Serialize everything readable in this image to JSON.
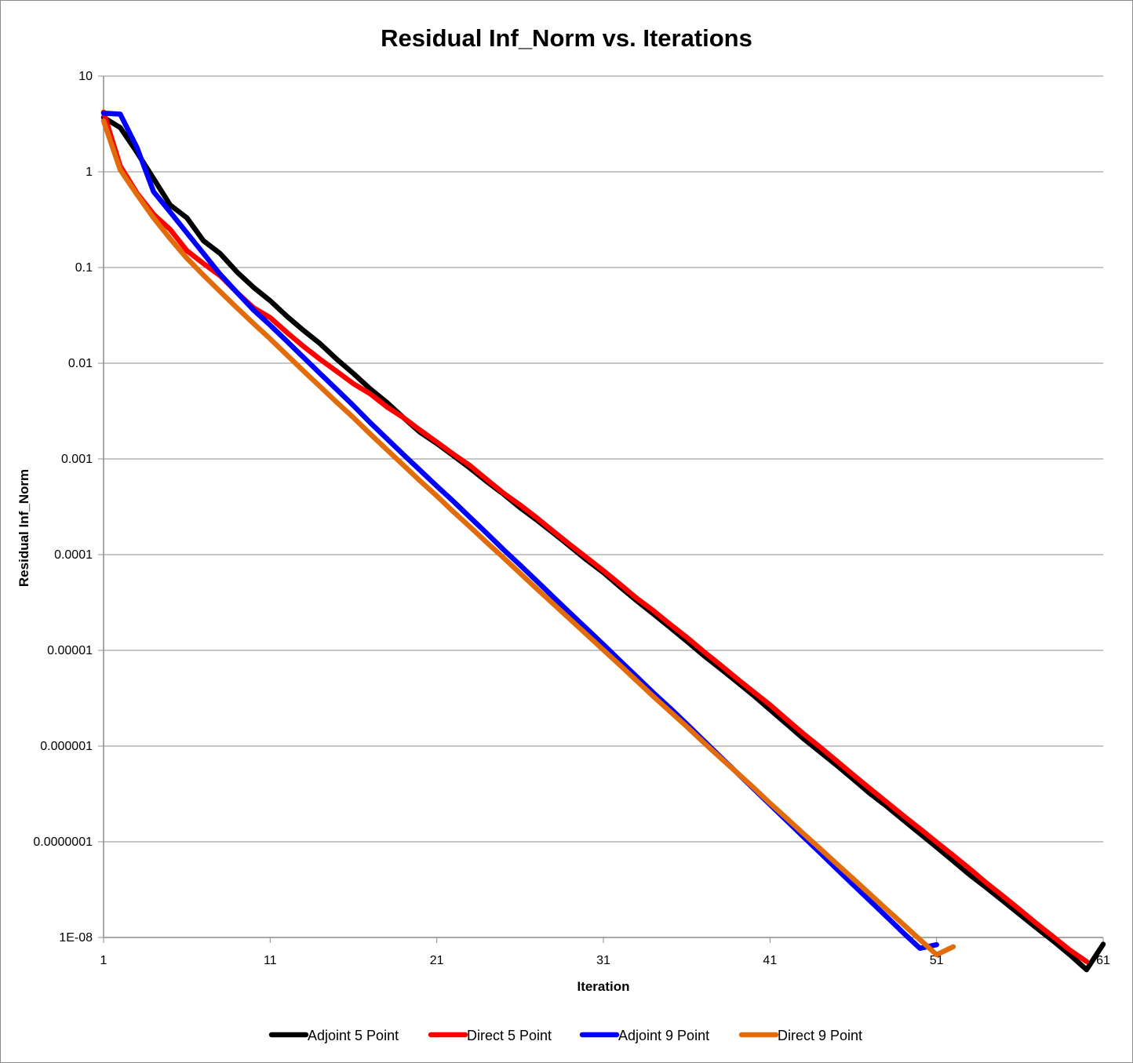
{
  "chart_data": {
    "type": "line",
    "title": "Residual Inf_Norm vs. Iterations",
    "xlabel": "Iteration",
    "ylabel": "Residual Inf_Norm",
    "x_scale": "linear",
    "y_scale": "log",
    "xlim": [
      1,
      61
    ],
    "ylim": [
      1e-08,
      10
    ],
    "x_ticks": [
      1,
      11,
      21,
      31,
      41,
      51,
      61
    ],
    "x_tick_labels": [
      "1",
      "11",
      "21",
      "31",
      "41",
      "51",
      "61"
    ],
    "y_ticks": [
      10,
      1,
      0.1,
      0.01,
      0.001,
      0.0001,
      1e-05,
      1e-06,
      1e-07,
      1e-08
    ],
    "y_tick_labels": [
      "10",
      "1",
      "0.1",
      "0.01",
      "0.001",
      "0.0001",
      "0.00001",
      "0.000001",
      "0.0000001",
      "1E-08"
    ],
    "grid": "horizontal major gridlines",
    "legend_position": "bottom",
    "series": [
      {
        "name": "Adjoint 5 Point",
        "color": "#000000",
        "x": [
          1,
          2,
          3,
          4,
          5,
          6,
          7,
          8,
          9,
          10,
          11,
          12,
          13,
          14,
          15,
          16,
          17,
          18,
          19,
          20,
          21,
          22,
          23,
          24,
          25,
          26,
          27,
          28,
          29,
          30,
          31,
          32,
          33,
          34,
          35,
          36,
          37,
          38,
          39,
          40,
          41,
          42,
          43,
          44,
          45,
          46,
          47,
          48,
          49,
          50,
          51,
          52,
          53,
          54,
          55,
          56,
          57,
          58,
          59,
          60,
          61
        ],
        "y": [
          3.7,
          2.9,
          1.6,
          0.85,
          0.45,
          0.33,
          0.19,
          0.14,
          0.09,
          0.062,
          0.045,
          0.031,
          0.022,
          0.016,
          0.011,
          0.0078,
          0.0054,
          0.0039,
          0.0027,
          0.0019,
          0.00145,
          0.00108,
          0.0008,
          0.00058,
          0.00043,
          0.00031,
          0.00023,
          0.000168,
          0.000122,
          8.8e-05,
          6.5e-05,
          4.6e-05,
          3.3e-05,
          2.4e-05,
          1.74e-05,
          1.25e-05,
          8.9e-06,
          6.5e-06,
          4.7e-06,
          3.4e-06,
          2.4e-06,
          1.7e-06,
          1.2e-06,
          8.7e-07,
          6.3e-07,
          4.5e-07,
          3.2e-07,
          2.35e-07,
          1.69e-07,
          1.22e-07,
          8.8e-08,
          6.3e-08,
          4.5e-08,
          3.3e-08,
          2.4e-08,
          1.74e-08,
          1.26e-08,
          9.2e-09,
          6.6e-09,
          4.6e-09,
          8.5e-09
        ]
      },
      {
        "name": "Direct 5 Point",
        "color": "#ff0000",
        "x": [
          1,
          2,
          3,
          4,
          5,
          6,
          7,
          8,
          9,
          10,
          11,
          12,
          13,
          14,
          15,
          16,
          17,
          18,
          19,
          20,
          21,
          22,
          23,
          24,
          25,
          26,
          27,
          28,
          29,
          30,
          31,
          32,
          33,
          34,
          35,
          36,
          37,
          38,
          39,
          40,
          41,
          42,
          43,
          44,
          45,
          46,
          47,
          48,
          49,
          50,
          51,
          52,
          53,
          54,
          55,
          56,
          57,
          58,
          59,
          60
        ],
        "y": [
          4.2,
          1.15,
          0.6,
          0.36,
          0.25,
          0.15,
          0.11,
          0.082,
          0.055,
          0.038,
          0.03,
          0.021,
          0.015,
          0.011,
          0.0082,
          0.0061,
          0.0048,
          0.0035,
          0.0027,
          0.002,
          0.0015,
          0.00112,
          0.00085,
          0.00061,
          0.00044,
          0.00033,
          0.000243,
          0.000175,
          0.000127,
          9.3e-05,
          6.8e-05,
          4.9e-05,
          3.5e-05,
          2.6e-05,
          1.88e-05,
          1.37e-05,
          9.8e-06,
          7.1e-06,
          5.1e-06,
          3.7e-06,
          2.7e-06,
          1.9e-06,
          1.35e-06,
          9.8e-07,
          7e-07,
          5e-07,
          3.6e-07,
          2.6e-07,
          1.88e-07,
          1.37e-07,
          9.9e-08,
          7.2e-08,
          5.2e-08,
          3.7e-08,
          2.7e-08,
          1.95e-08,
          1.4e-08,
          1.02e-08,
          7.4e-09,
          5.6e-09
        ]
      },
      {
        "name": "Adjoint 9 Point",
        "color": "#0000ff",
        "x": [
          1,
          2,
          3,
          4,
          5,
          6,
          7,
          8,
          9,
          10,
          11,
          12,
          13,
          14,
          15,
          16,
          17,
          18,
          19,
          20,
          21,
          22,
          23,
          24,
          25,
          26,
          27,
          28,
          29,
          30,
          31,
          32,
          33,
          34,
          35,
          36,
          37,
          38,
          39,
          40,
          41,
          42,
          43,
          44,
          45,
          46,
          47,
          48,
          49,
          50,
          51
        ],
        "y": [
          4.1,
          4.0,
          1.8,
          0.62,
          0.38,
          0.23,
          0.14,
          0.085,
          0.055,
          0.036,
          0.025,
          0.017,
          0.0115,
          0.0078,
          0.0053,
          0.0036,
          0.0024,
          0.00163,
          0.00111,
          0.00076,
          0.00052,
          0.00036,
          0.000245,
          0.000167,
          0.000113,
          7.8e-05,
          5.3e-05,
          3.6e-05,
          2.46e-05,
          1.68e-05,
          1.15e-05,
          7.8e-06,
          5.3e-06,
          3.6e-06,
          2.5e-06,
          1.7e-06,
          1.15e-06,
          7.8e-07,
          5.3e-07,
          3.6e-07,
          2.45e-07,
          1.66e-07,
          1.13e-07,
          7.7e-08,
          5.2e-08,
          3.55e-08,
          2.42e-08,
          1.65e-08,
          1.12e-08,
          7.7e-09,
          8.4e-09
        ]
      },
      {
        "name": "Direct 9 Point",
        "color": "#e36c0a",
        "x": [
          1,
          2,
          3,
          4,
          5,
          6,
          7,
          8,
          9,
          10,
          11,
          12,
          13,
          14,
          15,
          16,
          17,
          18,
          19,
          20,
          21,
          22,
          23,
          24,
          25,
          26,
          27,
          28,
          29,
          30,
          31,
          32,
          33,
          34,
          35,
          36,
          37,
          38,
          39,
          40,
          41,
          42,
          43,
          44,
          45,
          46,
          47,
          48,
          49,
          50,
          51,
          52
        ],
        "y": [
          3.4,
          1.05,
          0.58,
          0.33,
          0.2,
          0.125,
          0.083,
          0.056,
          0.038,
          0.026,
          0.018,
          0.0122,
          0.0083,
          0.0057,
          0.0039,
          0.0027,
          0.00183,
          0.00125,
          0.00086,
          0.00059,
          0.00041,
          0.00028,
          0.000195,
          0.000134,
          9.3e-05,
          6.4e-05,
          4.4e-05,
          3.05e-05,
          2.11e-05,
          1.46e-05,
          1.01e-05,
          7e-06,
          4.8e-06,
          3.3e-06,
          2.3e-06,
          1.6e-06,
          1.1e-06,
          7.6e-07,
          5.3e-07,
          3.7e-07,
          2.53e-07,
          1.76e-07,
          1.22e-07,
          8.5e-08,
          5.9e-08,
          4.1e-08,
          2.84e-08,
          1.97e-08,
          1.37e-08,
          9.5e-09,
          6.6e-09,
          8e-09
        ]
      }
    ]
  }
}
